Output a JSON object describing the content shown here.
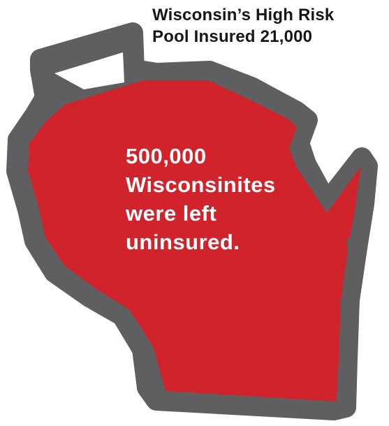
{
  "headline": {
    "line1": "Wisconsin’s High Risk",
    "line2": "Pool Insured 21,000"
  },
  "callout": {
    "line1": "500,000",
    "line2": "Wisconsinites",
    "line3": "were left",
    "line4": "uninsured."
  },
  "colors": {
    "state_fill": "#d0232b",
    "state_outline": "#5f5f61",
    "headline_text": "#171717",
    "callout_text": "#ffffff"
  },
  "illustration": {
    "subject": "wisconsin-state-map"
  }
}
